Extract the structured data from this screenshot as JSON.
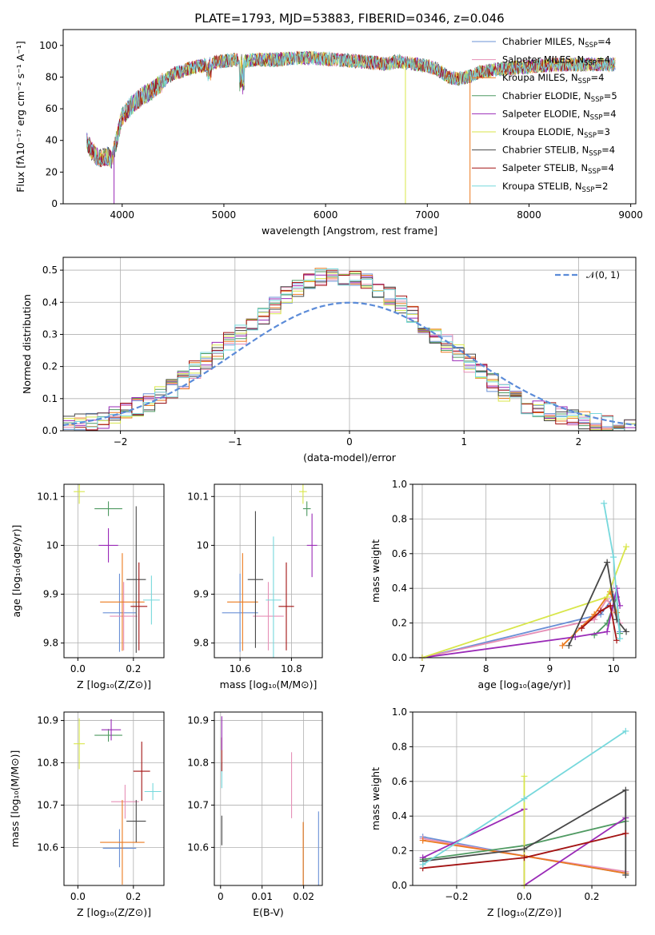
{
  "colors": [
    "#6a90d6",
    "#e68fb6",
    "#ec7a1e",
    "#4f9a62",
    "#9a2ab7",
    "#d8e64a",
    "#474747",
    "#a31313",
    "#76d8dc"
  ],
  "chart_data": [
    {
      "type": "line",
      "title": "PLATE=1793, MJD=53883, FIBERID=0346, z=0.046",
      "xlabel": "wavelength [Angstrom, rest frame]",
      "ylabel": "Flux [fλ10⁻¹⁷ erg cm⁻² s⁻¹ A⁻¹]",
      "xlim": [
        3420,
        9050
      ],
      "ylim": [
        0,
        110
      ],
      "xticks": [
        4000,
        5000,
        6000,
        7000,
        8000,
        9000
      ],
      "yticks": [
        0,
        20,
        40,
        60,
        80,
        100
      ],
      "grid": false,
      "legend_position": "upper-right",
      "series_names": [
        "Chabrier MILES, N",
        "Salpeter MILES, N",
        "Kroupa MILES, N",
        "Chabrier ELODIE, N",
        "Salpeter ELODIE, N",
        "Kroupa ELODIE, N",
        "Chabrier STELIB, N",
        "Salpeter STELIB, N",
        "Kroupa STELIB, N"
      ],
      "legend_sub": "SSP",
      "nssp": [
        "=4",
        "=4",
        "=4",
        "=5",
        "=4",
        "=3",
        "=4",
        "=4",
        "=2"
      ],
      "x": [
        3650,
        3700,
        3750,
        3800,
        3850,
        3900,
        3950,
        4000,
        4100,
        4200,
        4300,
        4400,
        4500,
        4700,
        4900,
        5100,
        5200,
        5300,
        5500,
        5700,
        5900,
        6100,
        6300,
        6500,
        6600,
        6700,
        6800,
        6900,
        7000,
        7100,
        7200,
        7300,
        7400,
        7500,
        7700,
        7900,
        8100,
        8300,
        8500,
        8700,
        8850
      ],
      "y": [
        40,
        33,
        30,
        29,
        30,
        28,
        42,
        55,
        63,
        68,
        72,
        77,
        82,
        86,
        89,
        91,
        90,
        91,
        91,
        92,
        92,
        91,
        90,
        89,
        88,
        90,
        89,
        88,
        87,
        85,
        80,
        79,
        80,
        83,
        85,
        86,
        87,
        88,
        88,
        88,
        88
      ],
      "dips": [
        {
          "x": 3920,
          "to": 0
        },
        {
          "x": 6785,
          "to": 0
        },
        {
          "x": 7420,
          "to": 0
        }
      ]
    },
    {
      "type": "area",
      "title": "",
      "xlabel": "(data-model)/error",
      "ylabel": "Normed distribution",
      "xlim": [
        -2.5,
        2.5
      ],
      "ylim": [
        0,
        0.54
      ],
      "xticks": [
        -2,
        -1,
        0,
        1,
        2
      ],
      "yticks": [
        0,
        0.1,
        0.2,
        0.3,
        0.4,
        0.5
      ],
      "grid": true,
      "legend": "𝒩(0, 1)",
      "bin_width": 0.1,
      "x": [
        -2.45,
        -2.35,
        -2.25,
        -2.15,
        -2.05,
        -1.95,
        -1.85,
        -1.75,
        -1.65,
        -1.55,
        -1.45,
        -1.35,
        -1.25,
        -1.15,
        -1.05,
        -0.95,
        -0.85,
        -0.75,
        -0.65,
        -0.55,
        -0.45,
        -0.35,
        -0.25,
        -0.15,
        -0.05,
        0.05,
        0.15,
        0.25,
        0.35,
        0.45,
        0.55,
        0.65,
        0.75,
        0.85,
        0.95,
        1.05,
        1.15,
        1.25,
        1.35,
        1.45,
        1.55,
        1.65,
        1.75,
        1.85,
        1.95,
        2.05,
        2.15,
        2.25,
        2.35,
        2.45
      ],
      "y": [
        0.02,
        0.025,
        0.03,
        0.035,
        0.045,
        0.06,
        0.075,
        0.09,
        0.11,
        0.13,
        0.16,
        0.19,
        0.22,
        0.25,
        0.28,
        0.3,
        0.33,
        0.36,
        0.39,
        0.42,
        0.44,
        0.46,
        0.48,
        0.49,
        0.48,
        0.47,
        0.46,
        0.44,
        0.42,
        0.39,
        0.36,
        0.33,
        0.3,
        0.27,
        0.24,
        0.21,
        0.18,
        0.15,
        0.12,
        0.1,
        0.08,
        0.07,
        0.06,
        0.05,
        0.04,
        0.03,
        0.025,
        0.02,
        0.02,
        0.015
      ]
    },
    {
      "type": "scatter",
      "xlabel": "Z [log₁₀(Z/Z⊙)]",
      "ylabel": "age  [log₁₀(age/yr)]",
      "xlim": [
        -0.05,
        0.31
      ],
      "ylim": [
        9.77,
        10.125
      ],
      "xticks": [
        0.0,
        0.2
      ],
      "yticks": [
        9.8,
        9.9,
        10.0,
        10.1
      ],
      "grid": true,
      "points": [
        {
          "x": 0.15,
          "y": 9.862,
          "xe": 0.06,
          "ye": 0.08,
          "c": 0
        },
        {
          "x": 0.165,
          "y": 9.855,
          "xe": 0.05,
          "ye": 0.07,
          "c": 1
        },
        {
          "x": 0.16,
          "y": 9.884,
          "xe": 0.08,
          "ye": 0.1,
          "c": 2
        },
        {
          "x": 0.11,
          "y": 10.075,
          "xe": 0.05,
          "ye": 0.015,
          "c": 3
        },
        {
          "x": 0.11,
          "y": 10.0,
          "xe": 0.035,
          "ye": 0.035,
          "c": 4
        },
        {
          "x": 0.005,
          "y": 10.11,
          "xe": 0.02,
          "ye": 0.025,
          "c": 5
        },
        {
          "x": 0.21,
          "y": 9.93,
          "xe": 0.035,
          "ye": 0.15,
          "c": 6
        },
        {
          "x": 0.22,
          "y": 9.875,
          "xe": 0.03,
          "ye": 0.09,
          "c": 7
        },
        {
          "x": 0.265,
          "y": 9.888,
          "xe": 0.03,
          "ye": 0.05,
          "c": 8
        }
      ]
    },
    {
      "type": "scatter",
      "xlabel": "mass [log₁₀(M/M⊙)]",
      "ylabel": "",
      "xlim": [
        10.5,
        10.92
      ],
      "ylim": [
        9.77,
        10.125
      ],
      "xticks": [
        10.6,
        10.8
      ],
      "yticks": [
        9.8,
        9.9,
        10.0,
        10.1
      ],
      "grid": true,
      "points": [
        {
          "x": 10.6,
          "y": 9.862,
          "xe": 0.07,
          "ye": 0.08,
          "c": 0
        },
        {
          "x": 10.71,
          "y": 9.855,
          "xe": 0.06,
          "ye": 0.07,
          "c": 1
        },
        {
          "x": 10.61,
          "y": 9.884,
          "xe": 0.06,
          "ye": 0.1,
          "c": 2
        },
        {
          "x": 10.86,
          "y": 10.075,
          "xe": 0.015,
          "ye": 0.015,
          "c": 3
        },
        {
          "x": 10.88,
          "y": 10.0,
          "xe": 0.02,
          "ye": 0.065,
          "c": 4
        },
        {
          "x": 10.845,
          "y": 10.11,
          "xe": 0.015,
          "ye": 0.025,
          "c": 5
        },
        {
          "x": 10.66,
          "y": 9.93,
          "xe": 0.03,
          "ye": 0.14,
          "c": 6
        },
        {
          "x": 10.78,
          "y": 9.875,
          "xe": 0.03,
          "ye": 0.09,
          "c": 7
        },
        {
          "x": 10.73,
          "y": 9.888,
          "xe": 0.03,
          "ye": 0.13,
          "c": 8
        }
      ]
    },
    {
      "type": "line",
      "xlabel": "age  [log₁₀(age/yr)]",
      "ylabel": "mass weight",
      "xlim": [
        6.85,
        10.35
      ],
      "ylim": [
        0,
        1.0
      ],
      "xticks": [
        7,
        8,
        9,
        10
      ],
      "yticks": [
        0.0,
        0.2,
        0.4,
        0.6,
        0.8,
        1.0
      ],
      "grid": true,
      "series": [
        {
          "c": 0,
          "x": [
            7.0,
            9.8,
            10.0,
            10.1
          ],
          "y": [
            0.0,
            0.25,
            0.35,
            0.15
          ]
        },
        {
          "c": 1,
          "x": [
            7.0,
            9.7,
            9.9,
            10.1
          ],
          "y": [
            0.0,
            0.22,
            0.34,
            0.2
          ]
        },
        {
          "c": 2,
          "x": [
            9.2,
            9.7,
            9.95,
            10.05
          ],
          "y": [
            0.07,
            0.25,
            0.38,
            0.26
          ]
        },
        {
          "c": 3,
          "x": [
            9.7,
            9.9,
            10.05,
            10.1
          ],
          "y": [
            0.13,
            0.2,
            0.35,
            0.14
          ]
        },
        {
          "c": 4,
          "x": [
            7.0,
            9.4,
            9.9,
            10.05,
            10.1
          ],
          "y": [
            0.0,
            0.12,
            0.15,
            0.4,
            0.3
          ]
        },
        {
          "c": 5,
          "x": [
            7.0,
            9.9,
            10.2
          ],
          "y": [
            0.0,
            0.35,
            0.64
          ]
        },
        {
          "c": 6,
          "x": [
            9.3,
            9.9,
            10.05,
            10.2
          ],
          "y": [
            0.07,
            0.55,
            0.22,
            0.15
          ]
        },
        {
          "c": 7,
          "x": [
            9.5,
            9.8,
            9.95,
            10.05
          ],
          "y": [
            0.17,
            0.27,
            0.3,
            0.1
          ]
        },
        {
          "c": 8,
          "x": [
            9.85,
            10.0,
            10.1
          ],
          "y": [
            0.89,
            0.58,
            0.11
          ]
        }
      ]
    },
    {
      "type": "scatter",
      "xlabel": "Z [log₁₀(Z/Z⊙)]",
      "ylabel": "mass [log₁₀(M/M⊙)]",
      "xlim": [
        -0.05,
        0.31
      ],
      "ylim": [
        10.51,
        10.92
      ],
      "xticks": [
        0.0,
        0.2
      ],
      "yticks": [
        10.6,
        10.7,
        10.8,
        10.9
      ],
      "grid": true,
      "points": [
        {
          "x": 0.15,
          "y": 10.598,
          "xe": 0.06,
          "ye": 0.045,
          "c": 0
        },
        {
          "x": 0.17,
          "y": 10.708,
          "xe": 0.05,
          "ye": 0.04,
          "c": 1
        },
        {
          "x": 0.16,
          "y": 10.612,
          "xe": 0.08,
          "ye": 0.1,
          "c": 2
        },
        {
          "x": 0.11,
          "y": 10.865,
          "xe": 0.05,
          "ye": 0.015,
          "c": 3
        },
        {
          "x": 0.12,
          "y": 10.878,
          "xe": 0.035,
          "ye": 0.025,
          "c": 4
        },
        {
          "x": 0.005,
          "y": 10.845,
          "xe": 0.02,
          "ye": 0.06,
          "c": 5
        },
        {
          "x": 0.21,
          "y": 10.662,
          "xe": 0.035,
          "ye": 0.05,
          "c": 6
        },
        {
          "x": 0.23,
          "y": 10.78,
          "xe": 0.03,
          "ye": 0.07,
          "c": 7
        },
        {
          "x": 0.27,
          "y": 10.732,
          "xe": 0.03,
          "ye": 0.02,
          "c": 8
        }
      ]
    },
    {
      "type": "scatter",
      "xlabel": "E(B-V)",
      "ylabel": "",
      "xlim": [
        -0.0015,
        0.0245
      ],
      "ylim": [
        10.51,
        10.92
      ],
      "xticks": [
        0.0,
        0.01,
        0.02
      ],
      "yticks": [
        10.6,
        10.7,
        10.8,
        10.9
      ],
      "grid": true,
      "points": [
        {
          "x": 0.0003,
          "y": 10.64,
          "xe": 0.0,
          "ye": 0.035,
          "c": 6
        },
        {
          "x": 0.0003,
          "y": 10.77,
          "xe": 0.0,
          "ye": 0.03,
          "c": 8
        },
        {
          "x": 0.0003,
          "y": 10.82,
          "xe": 0.0,
          "ye": 0.04,
          "c": 7
        },
        {
          "x": 0.0003,
          "y": 10.87,
          "xe": 0.0,
          "ye": 0.04,
          "c": 4
        },
        {
          "x": 0.0171,
          "y": 10.747,
          "xe": 0.0,
          "ye": 0.078,
          "c": 1
        },
        {
          "x": 0.0199,
          "y": 10.57,
          "xe": 0.0,
          "ye": 0.09,
          "c": 2
        },
        {
          "x": 0.0236,
          "y": 10.585,
          "xe": 0.0,
          "ye": 0.1,
          "c": 0
        }
      ]
    },
    {
      "type": "line",
      "xlabel": "Z [log₁₀(Z/Z⊙)]",
      "ylabel": "mass weight",
      "xlim": [
        -0.33,
        0.33
      ],
      "ylim": [
        0,
        1.0
      ],
      "xticks": [
        -0.2,
        0.0,
        0.2
      ],
      "yticks": [
        0.0,
        0.2,
        0.4,
        0.6,
        0.8,
        1.0
      ],
      "grid": true,
      "series": [
        {
          "c": 0,
          "x": [
            -0.3,
            0.0,
            0.3
          ],
          "y": [
            0.28,
            0.17,
            0.07
          ]
        },
        {
          "c": 1,
          "x": [
            -0.3,
            0.0,
            0.3
          ],
          "y": [
            0.27,
            0.17,
            0.08
          ]
        },
        {
          "c": 2,
          "x": [
            -0.3,
            0.0,
            0.3
          ],
          "y": [
            0.26,
            0.17,
            0.07
          ]
        },
        {
          "c": 3,
          "x": [
            -0.3,
            0.0,
            0.3
          ],
          "y": [
            0.15,
            0.23,
            0.37
          ]
        },
        {
          "c": 4,
          "x": [
            -0.3,
            0.0,
            0.0,
            0.3
          ],
          "y": [
            0.16,
            0.44,
            0.0,
            0.39
          ]
        },
        {
          "c": 5,
          "x": [
            0.0,
            0.0
          ],
          "y": [
            0.0,
            0.63
          ]
        },
        {
          "c": 6,
          "x": [
            -0.3,
            0.0,
            0.3,
            0.3
          ],
          "y": [
            0.14,
            0.21,
            0.55,
            0.06
          ]
        },
        {
          "c": 7,
          "x": [
            -0.3,
            0.0,
            0.3
          ],
          "y": [
            0.1,
            0.16,
            0.3
          ]
        },
        {
          "c": 8,
          "x": [
            -0.3,
            0.0,
            0.3
          ],
          "y": [
            0.12,
            0.5,
            0.89
          ]
        }
      ]
    }
  ]
}
